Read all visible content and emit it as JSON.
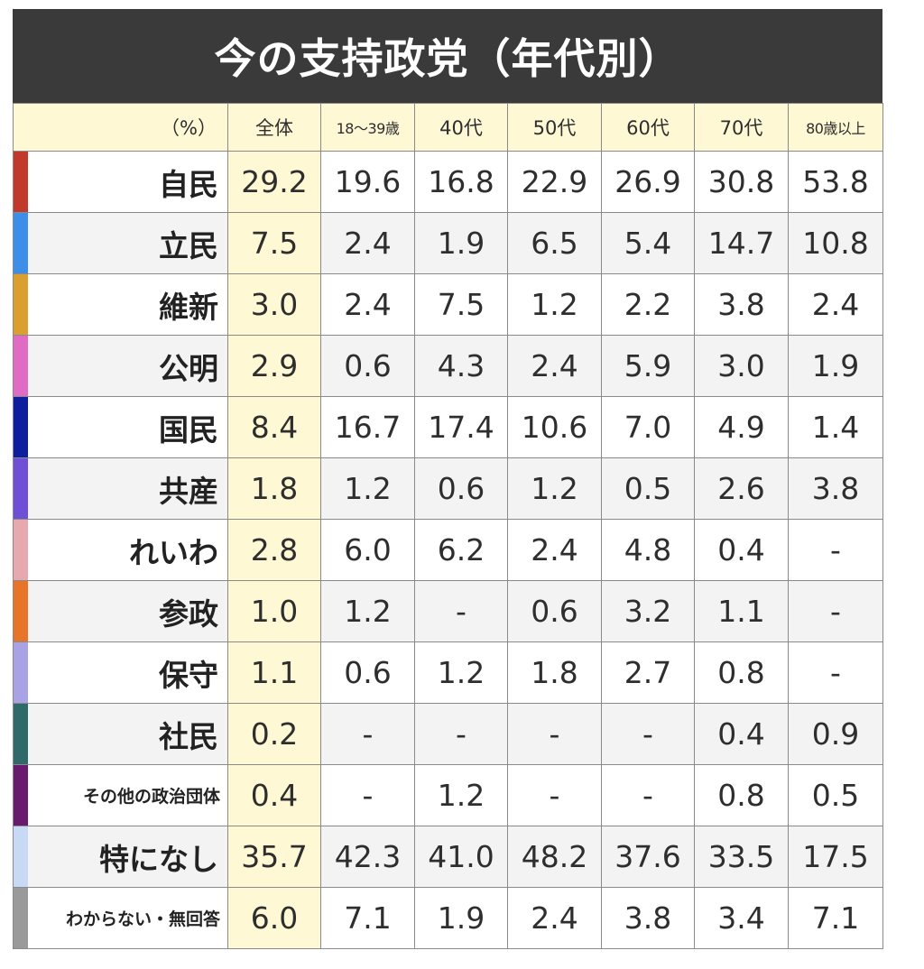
{
  "chart_data": {
    "type": "table",
    "title": "今の支持政党（年代別）",
    "unit_label": "（%）",
    "columns": [
      "全体",
      "18～39歳",
      "40代",
      "50代",
      "60代",
      "70代",
      "80歳以上"
    ],
    "rows": [
      {
        "party": "自民",
        "color": "#c0392b",
        "values": [
          "29.2",
          "19.6",
          "16.8",
          "22.9",
          "26.9",
          "30.8",
          "53.8"
        ]
      },
      {
        "party": "立民",
        "color": "#3d8ee8",
        "values": [
          "7.5",
          "2.4",
          "1.9",
          "6.5",
          "5.4",
          "14.7",
          "10.8"
        ]
      },
      {
        "party": "維新",
        "color": "#d9a030",
        "values": [
          "3.0",
          "2.4",
          "7.5",
          "1.2",
          "2.2",
          "3.8",
          "2.4"
        ]
      },
      {
        "party": "公明",
        "color": "#e06bc4",
        "values": [
          "2.9",
          "0.6",
          "4.3",
          "2.4",
          "5.9",
          "3.0",
          "1.9"
        ]
      },
      {
        "party": "国民",
        "color": "#0d1f9e",
        "values": [
          "8.4",
          "16.7",
          "17.4",
          "10.6",
          "7.0",
          "4.9",
          "1.4"
        ]
      },
      {
        "party": "共産",
        "color": "#6e4fd6",
        "values": [
          "1.8",
          "1.2",
          "0.6",
          "1.2",
          "0.5",
          "2.6",
          "3.8"
        ]
      },
      {
        "party": "れいわ",
        "color": "#e8a8b0",
        "values": [
          "2.8",
          "6.0",
          "6.2",
          "2.4",
          "4.8",
          "0.4",
          "-"
        ]
      },
      {
        "party": "参政",
        "color": "#e8742a",
        "values": [
          "1.0",
          "1.2",
          "-",
          "0.6",
          "3.2",
          "1.1",
          "-"
        ]
      },
      {
        "party": "保守",
        "color": "#a9a3e6",
        "values": [
          "1.1",
          "0.6",
          "1.2",
          "1.8",
          "2.7",
          "0.8",
          "-"
        ]
      },
      {
        "party": "社民",
        "color": "#2f6a6a",
        "values": [
          "0.2",
          "-",
          "-",
          "-",
          "-",
          "0.4",
          "0.9"
        ]
      },
      {
        "party": "その他の政治団体",
        "color": "#6a1a6e",
        "values": [
          "0.4",
          "-",
          "1.2",
          "-",
          "-",
          "0.8",
          "0.5"
        ]
      },
      {
        "party": "特になし",
        "color": "#c7d9f5",
        "values": [
          "35.7",
          "42.3",
          "41.0",
          "48.2",
          "37.6",
          "33.5",
          "17.5"
        ]
      },
      {
        "party": "わからない・無回答",
        "color": "#9a9a9a",
        "values": [
          "6.0",
          "7.1",
          "1.9",
          "2.4",
          "3.8",
          "3.4",
          "7.1"
        ]
      }
    ]
  }
}
